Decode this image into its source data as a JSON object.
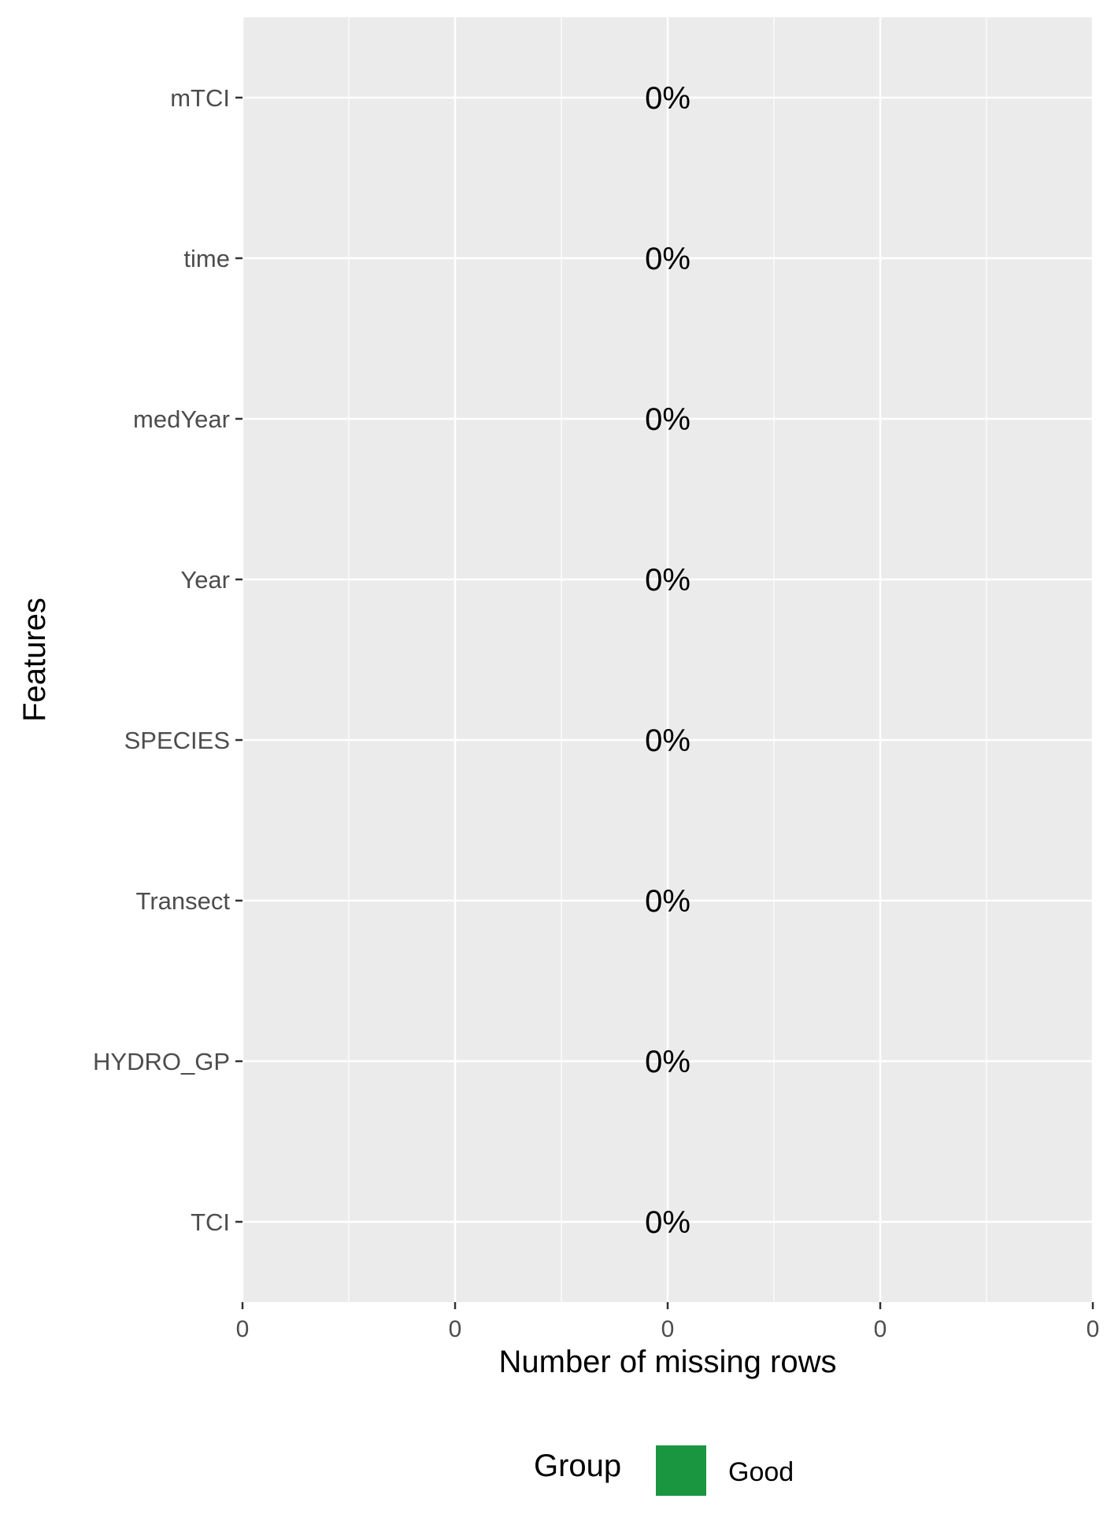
{
  "chart_data": {
    "type": "bar",
    "orientation": "horizontal",
    "categories": [
      "mTCI",
      "time",
      "medYear",
      "Year",
      "SPECIES",
      "Transect",
      "HYDRO_GP",
      "TCI"
    ],
    "values": [
      0,
      0,
      0,
      0,
      0,
      0,
      0,
      0
    ],
    "data_labels": [
      "0%",
      "0%",
      "0%",
      "0%",
      "0%",
      "0%",
      "0%",
      "0%"
    ],
    "xlabel": "Number of missing rows",
    "ylabel": "Features",
    "x_ticks": [
      "0",
      "0",
      "0",
      "0",
      "0"
    ],
    "grid": true,
    "legend": {
      "position": "bottom",
      "title": "Group",
      "entries": [
        {
          "name": "Good",
          "color": "#1a9641"
        }
      ]
    },
    "colors": {
      "panel_background": "#ebebeb",
      "grid": "#ffffff",
      "good": "#1a9641"
    }
  }
}
